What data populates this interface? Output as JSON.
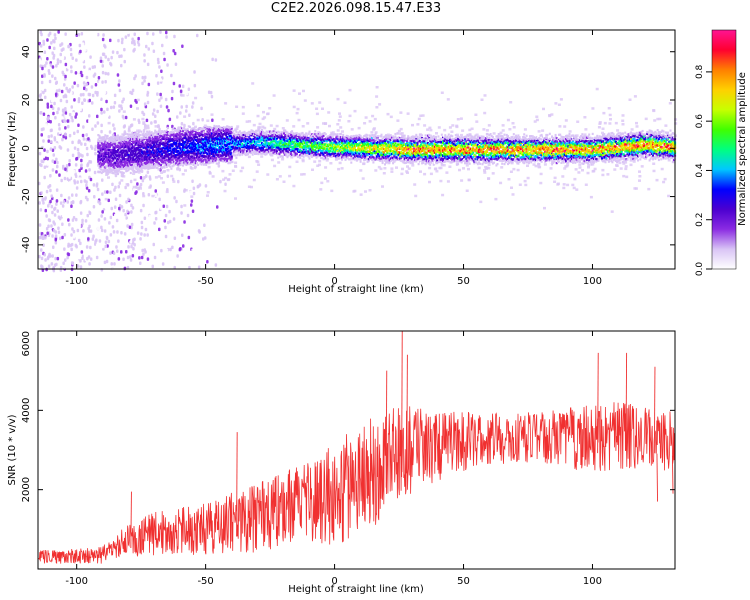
{
  "figure": {
    "title": "C2E2.2026.098.15.47.E33"
  },
  "chart_data": [
    {
      "type": "heatmap",
      "id": "spectrogram",
      "title": "C2E2.2026.098.15.47.E33",
      "xlabel": "Height of straight line (km)",
      "ylabel": "Frequency (Hz)",
      "xlim": [
        -115,
        132
      ],
      "ylim": [
        -50,
        49
      ],
      "xticks": [
        -100,
        -50,
        0,
        50,
        100
      ],
      "yticks": [
        -40,
        -20,
        0,
        20,
        40
      ],
      "grid": false,
      "signal_band": {
        "description_points": [
          [
            -85,
            -2
          ],
          [
            -60,
            1
          ],
          [
            -30,
            3
          ],
          [
            0,
            1
          ],
          [
            30,
            0
          ],
          [
            70,
            0
          ],
          [
            100,
            0
          ],
          [
            120,
            2
          ],
          [
            132,
            1
          ]
        ],
        "peak_amplitude_from_km": 25,
        "peak_amplitude": 0.95
      },
      "colorbar": {
        "label": "Normalized spectral amplitude",
        "range": [
          0.0,
          0.97
        ],
        "ticks": [
          0.0,
          0.2,
          0.4,
          0.6,
          0.8
        ],
        "colormap": [
          "#ffffff",
          "#d9c4f5",
          "#8a2be2",
          "#4b00d0",
          "#0000ff",
          "#00c8ff",
          "#00ff80",
          "#40ff00",
          "#c8ff00",
          "#ffd000",
          "#ff8000",
          "#ff0030",
          "#ff1493"
        ]
      }
    },
    {
      "type": "line",
      "id": "snr",
      "xlabel": "Height of straight line (km)",
      "ylabel": "SNR (10 * v/v)",
      "xlim": [
        -115,
        132
      ],
      "ylim": [
        0,
        6000
      ],
      "xticks": [
        -100,
        -50,
        0,
        50,
        100
      ],
      "yticks": [
        2000,
        4000,
        6000
      ],
      "color": "#f03030",
      "grid": false,
      "trend": {
        "x": [
          -115,
          -90,
          -85,
          -70,
          -50,
          -30,
          -10,
          0,
          10,
          20,
          30,
          40,
          50,
          60,
          70,
          80,
          90,
          100,
          110,
          120,
          132
        ],
        "mean": [
          300,
          350,
          600,
          900,
          1000,
          1300,
          1700,
          1900,
          2300,
          2700,
          3000,
          3100,
          3200,
          3300,
          3300,
          3300,
          3300,
          3300,
          3400,
          3300,
          3200
        ],
        "spread": [
          150,
          200,
          300,
          500,
          600,
          800,
          900,
          1200,
          1300,
          1300,
          1000,
          800,
          700,
          600,
          600,
          600,
          700,
          800,
          800,
          700,
          700
        ]
      },
      "peaks": [
        [
          -79,
          1950
        ],
        [
          -38,
          3450
        ],
        [
          20,
          5000
        ],
        [
          26,
          6000
        ],
        [
          28,
          5400
        ],
        [
          102,
          5450
        ],
        [
          113,
          5450
        ],
        [
          124,
          5100
        ],
        [
          125,
          1700
        ],
        [
          131,
          1900
        ]
      ]
    }
  ]
}
